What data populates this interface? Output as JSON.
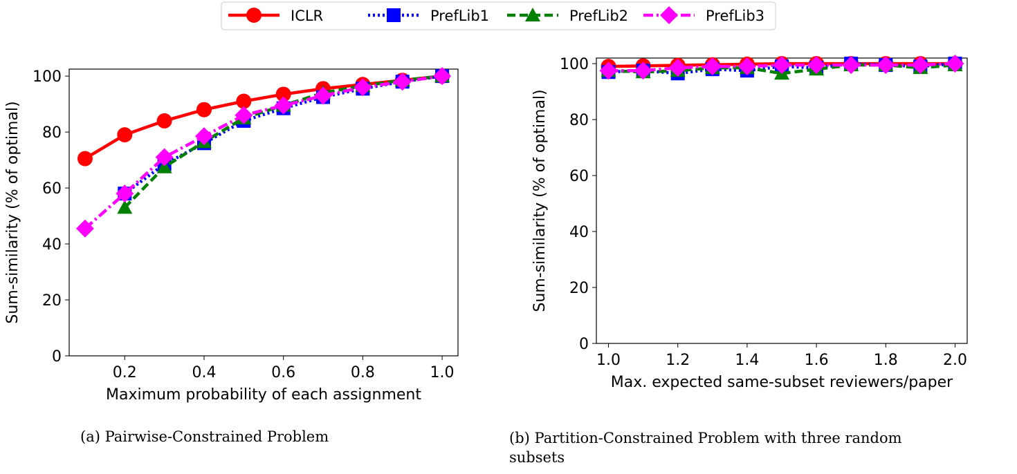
{
  "legend": [
    "ICLR",
    "PrefLib1",
    "PrefLib2",
    "PrefLib3"
  ],
  "captions": {
    "a": "(a) Pairwise-Constrained Problem",
    "b_line1": "(b) Partition-Constrained Problem with three random",
    "b_line2": "subsets"
  },
  "chart_data": [
    {
      "type": "line",
      "xlabel": "Maximum probability of each assignment",
      "ylabel": "Sum-similarity (% of optimal)",
      "xlim": [
        0.06,
        1.04
      ],
      "ylim": [
        0,
        102.5
      ],
      "xticks": [
        "0.2",
        "0.4",
        "0.6",
        "0.8",
        "1.0"
      ],
      "yticks": [
        "0",
        "20",
        "40",
        "60",
        "80",
        "100"
      ],
      "grid": false,
      "legend_position": "top-center",
      "series": [
        {
          "name": "ICLR",
          "color": "#ff0000",
          "style": "solid",
          "marker": "circle",
          "x": [
            0.1,
            0.2,
            0.3,
            0.4,
            0.5,
            0.6,
            0.7,
            0.8,
            0.9,
            1.0
          ],
          "y": [
            70.5,
            79,
            84,
            88,
            91,
            93.5,
            95.5,
            97,
            98.5,
            100
          ]
        },
        {
          "name": "PrefLib1",
          "color": "#0000ff",
          "style": "dotted",
          "marker": "square",
          "x": [
            0.2,
            0.3,
            0.4,
            0.5,
            0.6,
            0.7,
            0.8,
            0.9,
            1.0
          ],
          "y": [
            58,
            68.5,
            76,
            84,
            88.5,
            92.5,
            95.5,
            98,
            100
          ]
        },
        {
          "name": "PrefLib2",
          "color": "#008000",
          "style": "dashed",
          "marker": "triangle",
          "x": [
            0.2,
            0.3,
            0.4,
            0.5,
            0.6,
            0.7,
            0.8,
            0.9,
            1.0
          ],
          "y": [
            53,
            67.5,
            76.5,
            85,
            89.5,
            94,
            96.5,
            98.5,
            100
          ]
        },
        {
          "name": "PrefLib3",
          "color": "#ff00ff",
          "style": "dashdot",
          "marker": "diamond",
          "x": [
            0.1,
            0.2,
            0.3,
            0.4,
            0.5,
            0.6,
            0.7,
            0.8,
            0.9,
            1.0
          ],
          "y": [
            45.5,
            58,
            71,
            78.5,
            86,
            89.5,
            93,
            96,
            98,
            100
          ]
        }
      ]
    },
    {
      "type": "line",
      "xlabel": "Max. expected same-subset reviewers/paper",
      "ylabel": "Sum-similarity (% of optimal)",
      "xlim": [
        0.965,
        2.035
      ],
      "ylim": [
        0,
        102
      ],
      "xticks": [
        "1.0",
        "1.2",
        "1.4",
        "1.6",
        "1.8",
        "2.0"
      ],
      "yticks": [
        "0",
        "20",
        "40",
        "60",
        "80",
        "100"
      ],
      "grid": false,
      "series": [
        {
          "name": "ICLR",
          "color": "#ff0000",
          "style": "solid",
          "marker": "circle",
          "x": [
            1.0,
            1.1,
            1.2,
            1.3,
            1.4,
            1.5,
            1.6,
            1.7,
            1.8,
            1.9,
            2.0
          ],
          "y": [
            99,
            99.2,
            99.4,
            99.6,
            99.8,
            100,
            100,
            100,
            100,
            100,
            100
          ]
        },
        {
          "name": "PrefLib1",
          "color": "#0000ff",
          "style": "dotted",
          "marker": "square",
          "x": [
            1.0,
            1.1,
            1.2,
            1.3,
            1.4,
            1.5,
            1.6,
            1.7,
            1.8,
            1.9,
            2.0
          ],
          "y": [
            97,
            97.5,
            96.5,
            98,
            97.5,
            99,
            98.5,
            100,
            99.5,
            99,
            100
          ]
        },
        {
          "name": "PrefLib2",
          "color": "#008000",
          "style": "dashed",
          "marker": "triangle",
          "x": [
            1.0,
            1.1,
            1.2,
            1.3,
            1.4,
            1.5,
            1.6,
            1.7,
            1.8,
            1.9,
            2.0
          ],
          "y": [
            97.5,
            97,
            97.5,
            98.5,
            98.5,
            96.5,
            98,
            99.5,
            99.5,
            98.5,
            99.5
          ]
        },
        {
          "name": "PrefLib3",
          "color": "#ff00ff",
          "style": "dashdot",
          "marker": "diamond",
          "x": [
            1.0,
            1.1,
            1.2,
            1.3,
            1.4,
            1.5,
            1.6,
            1.7,
            1.8,
            1.9,
            2.0
          ],
          "y": [
            97.5,
            97.5,
            98.5,
            99,
            99,
            99.5,
            99.5,
            99.5,
            99.5,
            99.5,
            100
          ]
        }
      ]
    }
  ]
}
